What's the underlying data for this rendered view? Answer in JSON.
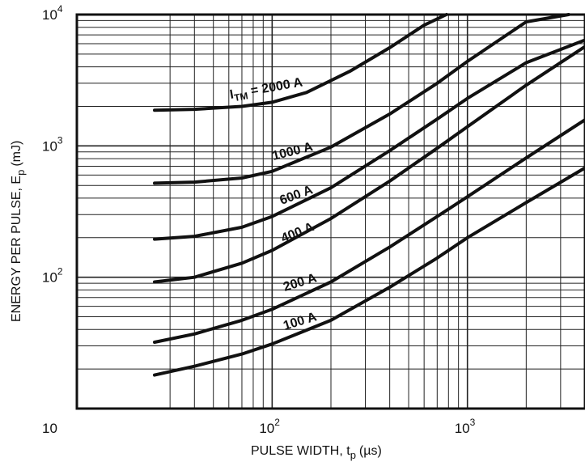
{
  "chart_data": {
    "type": "line",
    "title": "",
    "xlabel_main": "PULSE WIDTH, t",
    "xlabel_sub": "p",
    "xlabel_unit": "(µs)",
    "ylabel_main": "ENERGY PER PULSE, E",
    "ylabel_sub": "p",
    "ylabel_unit": "(mJ)",
    "x_scale": "log",
    "y_scale": "log",
    "xlim": [
      10,
      4000
    ],
    "ylim": [
      10,
      10000
    ],
    "grid": true,
    "x_ticks": [
      {
        "base": "10",
        "exp": ""
      },
      {
        "base": "10",
        "exp": "2"
      },
      {
        "base": "10",
        "exp": "3"
      }
    ],
    "y_ticks": [
      {
        "base": "10",
        "exp": "2"
      },
      {
        "base": "10",
        "exp": "3"
      },
      {
        "base": "10",
        "exp": "4"
      }
    ],
    "label_prefix": "I",
    "label_prefix_sub": "TM",
    "label_prefix_eq": " = ",
    "series": [
      {
        "name": "2000 A",
        "x": [
          25,
          40,
          70,
          100,
          150,
          250,
          400,
          600,
          780
        ],
        "y": [
          1870,
          1900,
          2000,
          2150,
          2550,
          3700,
          5600,
          8300,
          10000
        ]
      },
      {
        "name": "1000 A",
        "x": [
          25,
          40,
          70,
          100,
          200,
          400,
          700,
          1000,
          2000,
          3300
        ],
        "y": [
          520,
          530,
          570,
          640,
          980,
          1750,
          3000,
          4400,
          8800,
          10000
        ]
      },
      {
        "name": "600 A",
        "x": [
          25,
          40,
          70,
          100,
          200,
          400,
          700,
          1000,
          2000,
          4000
        ],
        "y": [
          195,
          205,
          240,
          290,
          480,
          920,
          1600,
          2300,
          4300,
          6400
        ]
      },
      {
        "name": "400 A",
        "x": [
          25,
          40,
          70,
          100,
          200,
          400,
          700,
          1000,
          2000,
          4000
        ],
        "y": [
          92,
          100,
          128,
          160,
          280,
          540,
          960,
          1400,
          2900,
          5700
        ]
      },
      {
        "name": "200 A",
        "x": [
          25,
          40,
          70,
          100,
          200,
          400,
          700,
          1000,
          2000,
          4000
        ],
        "y": [
          32,
          37,
          47,
          57,
          92,
          170,
          290,
          410,
          810,
          1580
        ]
      },
      {
        "name": "100 A",
        "x": [
          25,
          40,
          70,
          100,
          200,
          400,
          700,
          1000,
          2000,
          4000
        ],
        "y": [
          18,
          21,
          26,
          31,
          47,
          84,
          140,
          200,
          370,
          680
        ]
      }
    ]
  }
}
